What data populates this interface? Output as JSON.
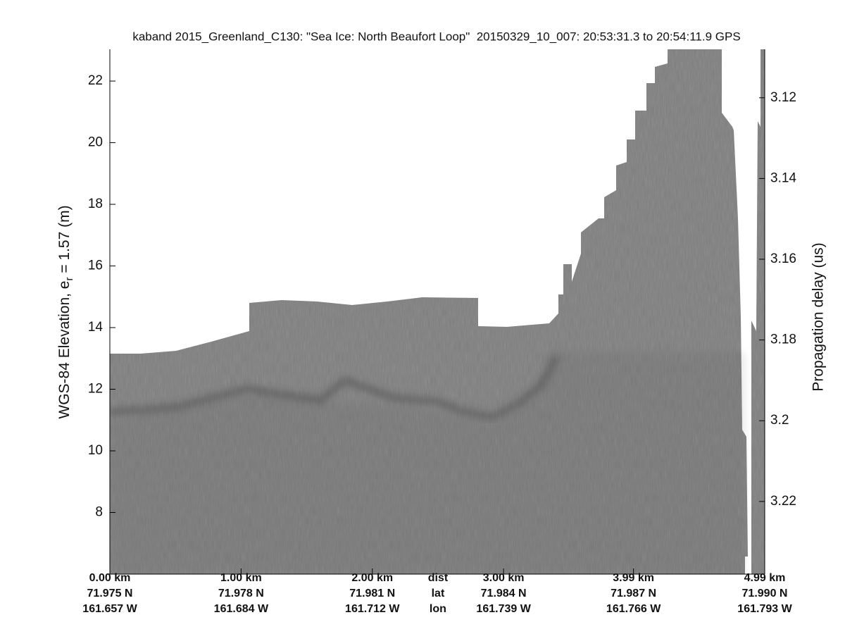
{
  "chart_data": {
    "type": "echogram",
    "title": "kaband 2015_Greenland_C130: \"Sea Ice: North Beaufort Loop\"  20150329_10_007: 20:53:31.3 to 20:54:11.9 GPS",
    "ylabel": [
      "WGS-84 Elevation, e",
      "r",
      " = 1.57 (m)"
    ],
    "y2label": "Propagation delay (us)",
    "ylim": [
      6.0,
      23.03
    ],
    "yticks": [
      8,
      10,
      12,
      14,
      16,
      18,
      20,
      22
    ],
    "y2lim": [
      3.238,
      3.108
    ],
    "y2ticks": [
      3.12,
      3.14,
      3.16,
      3.18,
      3.2,
      3.22
    ],
    "xlim": [
      0,
      4.99
    ],
    "xticks": [
      {
        "value": 0,
        "label": "0.00 km"
      },
      {
        "value": 1,
        "label": "1.00 km"
      },
      {
        "value": 2,
        "label": "2.00 km"
      },
      {
        "value": 3,
        "label": "3.00 km"
      },
      {
        "value": 3.99,
        "label": "3.99 km"
      },
      {
        "value": 4.99,
        "label": "4.99 km"
      }
    ],
    "xtick_rows": [
      "dist",
      "lat",
      "lon"
    ],
    "lat_labels": [
      "71.975 N",
      "71.978 N",
      "71.981 N",
      "71.984 N",
      "71.987 N",
      "71.990 N"
    ],
    "lon_labels": [
      "161.657 W",
      "161.684 W",
      "161.712 W",
      "161.739 W",
      "161.766 W",
      "161.793 W"
    ],
    "color": "#7e7e7e"
  }
}
